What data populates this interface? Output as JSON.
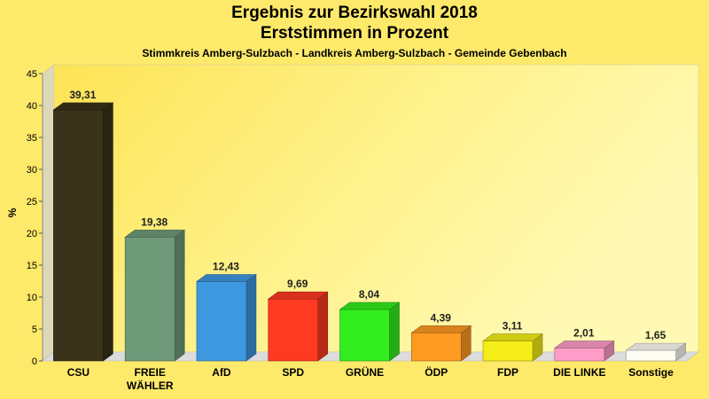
{
  "chart_data": {
    "type": "bar",
    "title": "Ergebnis zur Bezirkswahl 2018",
    "subtitle_line": "Erststimmen in Prozent",
    "subtitle": "Stimmkreis Amberg-Sulzbach - Landkreis Amberg-Sulzbach - Gemeinde Gebenbach",
    "ylabel": "%",
    "ylim": [
      0,
      45
    ],
    "yticks": [
      0,
      5,
      10,
      15,
      20,
      25,
      30,
      35,
      40,
      45
    ],
    "grid": false,
    "categories": [
      "CSU",
      "FREIE WÄHLER",
      "AfD",
      "SPD",
      "GRÜNE",
      "ÖDP",
      "FDP",
      "DIE LINKE",
      "Sonstige"
    ],
    "category_lines": [
      [
        "CSU"
      ],
      [
        "FREIE",
        "WÄHLER"
      ],
      [
        "AfD"
      ],
      [
        "SPD"
      ],
      [
        "GRÜNE"
      ],
      [
        "ÖDP"
      ],
      [
        "FDP"
      ],
      [
        "DIE LINKE"
      ],
      [
        "Sonstige"
      ]
    ],
    "values": [
      39.31,
      19.38,
      12.43,
      9.69,
      8.04,
      4.39,
      3.11,
      2.01,
      1.65
    ],
    "value_labels": [
      "39,31",
      "19,38",
      "12,43",
      "9,69",
      "8,04",
      "4,39",
      "3,11",
      "2,01",
      "1,65"
    ],
    "colors": [
      "#3a3219",
      "#6f9a7a",
      "#3d98e0",
      "#ff3a22",
      "#33ee1e",
      "#ff9a22",
      "#f6ee18",
      "#ff9dc8",
      "#fdfdf3"
    ]
  }
}
